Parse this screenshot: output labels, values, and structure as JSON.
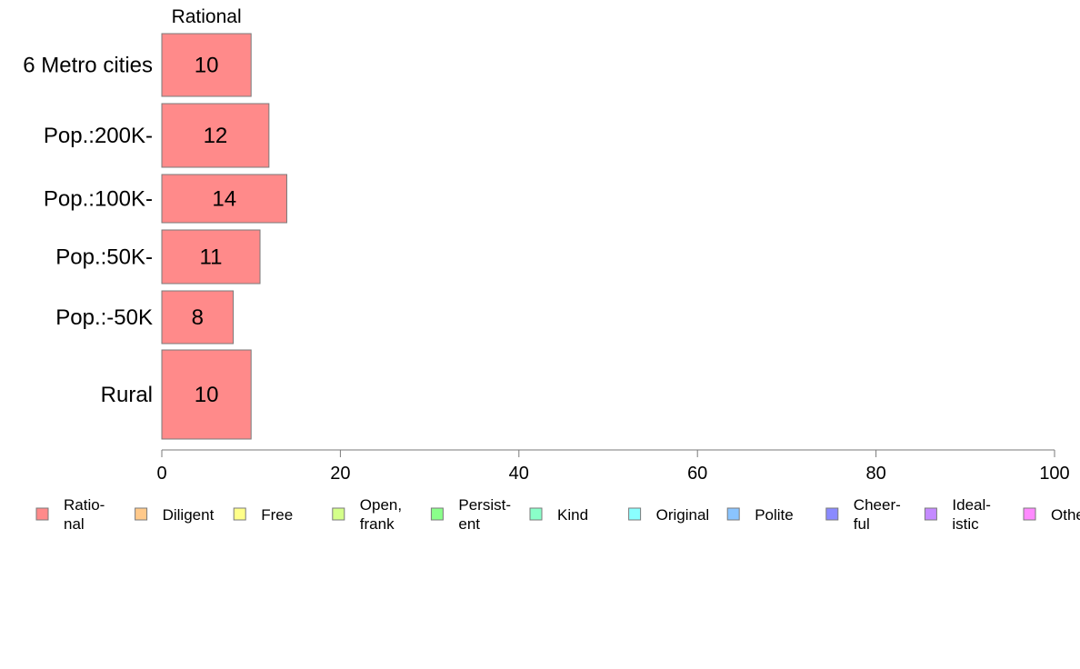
{
  "chart_data": {
    "type": "bar",
    "orientation": "horizontal",
    "stacked": true,
    "categories": [
      "6 Metro cities",
      "Pop.:200K-",
      "Pop.:100K-",
      "Pop.:50K-",
      "Pop.:-50K",
      "Rural"
    ],
    "series": [
      {
        "name": "Rational",
        "values": [
          10,
          12,
          14,
          11,
          8,
          10
        ],
        "color": "#ff8a8a"
      }
    ],
    "top_series_label": "Rational",
    "xlim": [
      0,
      100
    ],
    "xticks": [
      0,
      20,
      40,
      60,
      80,
      100
    ],
    "grid": false,
    "legend_position": "bottom",
    "legend": [
      {
        "lines": [
          "Ratio-",
          "nal"
        ],
        "color": "#ff8a8a"
      },
      {
        "lines": [
          "Diligent"
        ],
        "color": "#ffc98a"
      },
      {
        "lines": [
          "Free"
        ],
        "color": "#ffff8a"
      },
      {
        "lines": [
          "Open,",
          "frank"
        ],
        "color": "#d4ff8a"
      },
      {
        "lines": [
          "Persist-",
          "ent"
        ],
        "color": "#8aff8a"
      },
      {
        "lines": [
          "Kind"
        ],
        "color": "#8affc9"
      },
      {
        "lines": [
          "Original"
        ],
        "color": "#8affff"
      },
      {
        "lines": [
          "Polite"
        ],
        "color": "#8ac4ff"
      },
      {
        "lines": [
          "Cheer-",
          "ful"
        ],
        "color": "#8a8aff"
      },
      {
        "lines": [
          "Ideal-",
          "istic"
        ],
        "color": "#c48aff"
      },
      {
        "lines": [
          "Other"
        ],
        "color": "#ff8aff"
      }
    ]
  }
}
